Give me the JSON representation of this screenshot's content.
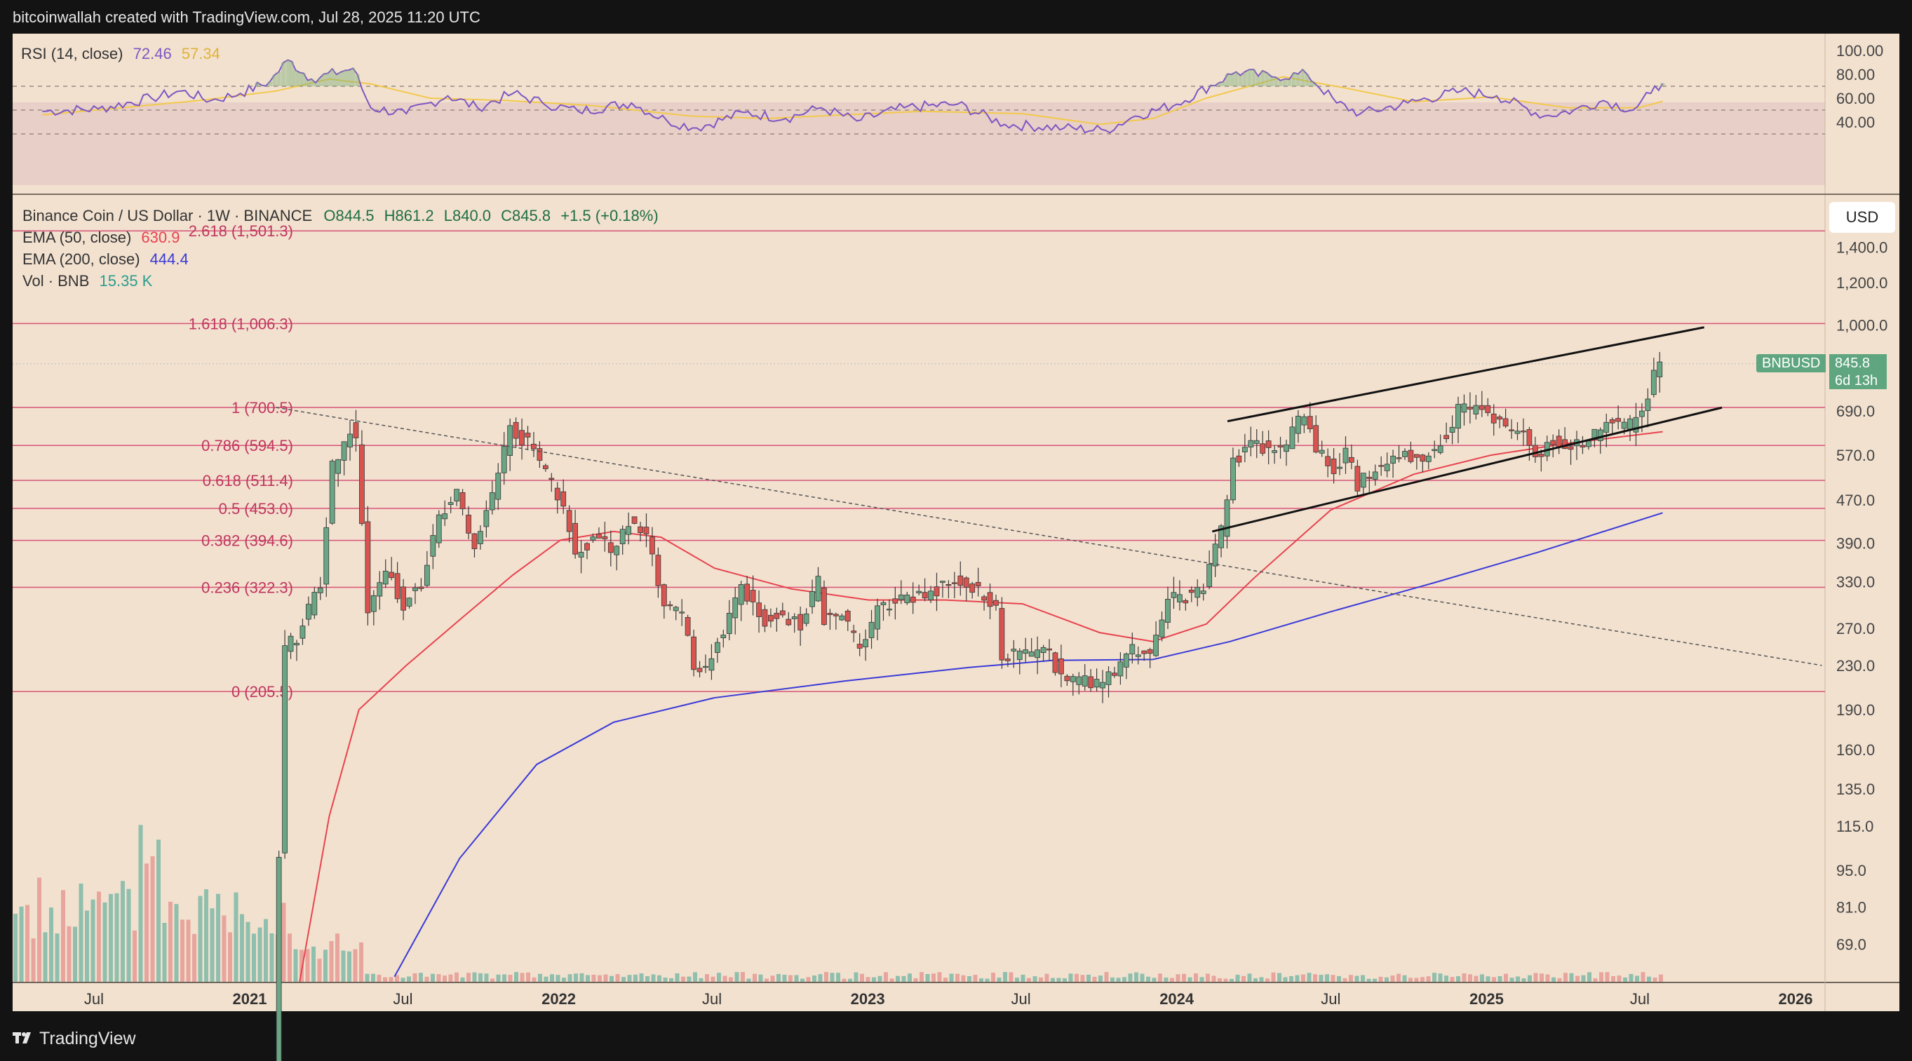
{
  "header": {
    "attribution": "bitcoinwallah created with TradingView.com, Jul 28, 2025 11:20 UTC"
  },
  "footer": {
    "logo_icon": "tradingview-logo-icon",
    "brand": "TradingView"
  },
  "colors": {
    "background": "#f2e1cf",
    "frame": "#131313",
    "up_candle": "#6aa584",
    "down_candle": "#d9534f",
    "ema50": "#e8434f",
    "ema200": "#3a3ad8",
    "rsi_line": "#7e57c2",
    "rsi_ma": "#f2c94c",
    "fib_line": "#d33c6a",
    "channel": "#111111"
  },
  "rsi_panel": {
    "label": "RSI (14, close)",
    "value": "72.46",
    "ma_value": "57.34",
    "axis_ticks": [
      "100.00",
      "80.00",
      "60.00",
      "40.00"
    ],
    "levels": [
      70,
      50,
      30
    ]
  },
  "main_legend": {
    "symbol": "Binance Coin / US Dollar · 1W · BINANCE",
    "open": "O844.5",
    "high": "H861.2",
    "low": "L840.0",
    "close": "C845.8",
    "change": "+1.5 (+0.18%)",
    "ema50_label": "EMA (50, close)",
    "ema50_value": "630.9",
    "ema200_label": "EMA (200, close)",
    "ema200_value": "444.4",
    "vol_label": "Vol · BNB",
    "vol_value": "15.35 K"
  },
  "currency": "USD",
  "price_tag": {
    "symbol": "BNBUSD",
    "price": "845.8",
    "countdown": "6d 13h"
  },
  "price_axis_ticks": [
    "1,400.0",
    "1,200.0",
    "1,000.0",
    "690.0",
    "570.0",
    "470.0",
    "390.0",
    "330.0",
    "270.0",
    "230.0",
    "190.0",
    "160.0",
    "135.0",
    "115.0",
    "95.0",
    "81.0",
    "69.0"
  ],
  "time_axis_ticks": [
    "Jul",
    "2021",
    "Jul",
    "2022",
    "Jul",
    "2023",
    "Jul",
    "2024",
    "Jul",
    "2025",
    "Jul",
    "2026"
  ],
  "chart_data": {
    "type": "candlestick",
    "title": "Binance Coin / US Dollar · 1W · BINANCE",
    "y_scale": "log",
    "ylim": [
      60,
      1550
    ],
    "xlim": [
      "2020-04",
      "2026-02"
    ],
    "fibonacci_levels": [
      {
        "label": "2.618 (1,501.3)",
        "value": 1501.3
      },
      {
        "label": "1.618 (1,006.3)",
        "value": 1006.3
      },
      {
        "label": "1 (700.5)",
        "value": 700.5
      },
      {
        "label": "0.786 (594.5)",
        "value": 594.5
      },
      {
        "label": "0.618 (511.4)",
        "value": 511.4
      },
      {
        "label": "0.5 (453.0)",
        "value": 453.0
      },
      {
        "label": "0.382 (394.6)",
        "value": 394.6
      },
      {
        "label": "0.236 (322.3)",
        "value": 322.3
      },
      {
        "label": "0 (205.5)",
        "value": 205.5
      }
    ],
    "price_path": [
      [
        "2021-02-01",
        40
      ],
      [
        "2021-02-15",
        250
      ],
      [
        "2021-03-01",
        260
      ],
      [
        "2021-03-29",
        330
      ],
      [
        "2021-04-12",
        540
      ],
      [
        "2021-05-03",
        640
      ],
      [
        "2021-05-10",
        600
      ],
      [
        "2021-05-24",
        290
      ],
      [
        "2021-06-14",
        350
      ],
      [
        "2021-07-05",
        300
      ],
      [
        "2021-07-26",
        330
      ],
      [
        "2021-08-16",
        440
      ],
      [
        "2021-09-06",
        480
      ],
      [
        "2021-09-27",
        380
      ],
      [
        "2021-10-18",
        480
      ],
      [
        "2021-11-08",
        640
      ],
      [
        "2021-11-29",
        600
      ],
      [
        "2021-12-20",
        530
      ],
      [
        "2022-01-10",
        460
      ],
      [
        "2022-01-24",
        370
      ],
      [
        "2022-02-14",
        400
      ],
      [
        "2022-03-07",
        380
      ],
      [
        "2022-03-28",
        430
      ],
      [
        "2022-04-18",
        410
      ],
      [
        "2022-05-09",
        300
      ],
      [
        "2022-05-30",
        290
      ],
      [
        "2022-06-13",
        230
      ],
      [
        "2022-06-27",
        230
      ],
      [
        "2022-07-18",
        270
      ],
      [
        "2022-08-08",
        320
      ],
      [
        "2022-09-05",
        280
      ],
      [
        "2022-09-26",
        285
      ],
      [
        "2022-10-17",
        275
      ],
      [
        "2022-11-07",
        330
      ],
      [
        "2022-11-14",
        280
      ],
      [
        "2022-12-05",
        290
      ],
      [
        "2022-12-26",
        245
      ],
      [
        "2023-01-16",
        290
      ],
      [
        "2023-02-13",
        310
      ],
      [
        "2023-03-13",
        310
      ],
      [
        "2023-04-10",
        330
      ],
      [
        "2023-04-24",
        330
      ],
      [
        "2023-05-22",
        310
      ],
      [
        "2023-06-05",
        300
      ],
      [
        "2023-06-12",
        240
      ],
      [
        "2023-07-10",
        245
      ],
      [
        "2023-08-07",
        240
      ],
      [
        "2023-08-21",
        220
      ],
      [
        "2023-09-11",
        215
      ],
      [
        "2023-10-02",
        212
      ],
      [
        "2023-10-23",
        225
      ],
      [
        "2023-11-13",
        245
      ],
      [
        "2023-12-04",
        240
      ],
      [
        "2023-12-25",
        305
      ],
      [
        "2024-01-15",
        310
      ],
      [
        "2024-02-05",
        320
      ],
      [
        "2024-02-26",
        410
      ],
      [
        "2024-03-11",
        560
      ],
      [
        "2024-04-01",
        590
      ],
      [
        "2024-04-22",
        590
      ],
      [
        "2024-05-13",
        600
      ],
      [
        "2024-06-03",
        690
      ],
      [
        "2024-06-17",
        590
      ],
      [
        "2024-07-08",
        530
      ],
      [
        "2024-07-22",
        580
      ],
      [
        "2024-08-05",
        500
      ],
      [
        "2024-08-26",
        540
      ],
      [
        "2024-09-16",
        560
      ],
      [
        "2024-10-07",
        570
      ],
      [
        "2024-10-28",
        570
      ],
      [
        "2024-11-18",
        620
      ],
      [
        "2024-12-02",
        700
      ],
      [
        "2024-12-16",
        690
      ],
      [
        "2025-01-06",
        690
      ],
      [
        "2025-01-27",
        640
      ],
      [
        "2025-02-17",
        620
      ],
      [
        "2025-03-03",
        560
      ],
      [
        "2025-03-24",
        610
      ],
      [
        "2025-04-14",
        590
      ],
      [
        "2025-05-05",
        600
      ],
      [
        "2025-05-26",
        660
      ],
      [
        "2025-06-16",
        640
      ],
      [
        "2025-06-30",
        655
      ],
      [
        "2025-07-14",
        720
      ],
      [
        "2025-07-21",
        800
      ],
      [
        "2025-07-28",
        845.8
      ]
    ],
    "ema50_path": [
      [
        "2021-03-01",
        40
      ],
      [
        "2021-04-05",
        120
      ],
      [
        "2021-05-10",
        190
      ],
      [
        "2021-07-05",
        230
      ],
      [
        "2021-09-06",
        280
      ],
      [
        "2021-11-08",
        340
      ],
      [
        "2022-01-03",
        395
      ],
      [
        "2022-03-07",
        410
      ],
      [
        "2022-05-02",
        400
      ],
      [
        "2022-07-04",
        350
      ],
      [
        "2022-10-03",
        320
      ],
      [
        "2023-01-02",
        305
      ],
      [
        "2023-04-03",
        305
      ],
      [
        "2023-07-03",
        300
      ],
      [
        "2023-10-02",
        265
      ],
      [
        "2023-12-04",
        255
      ],
      [
        "2024-02-05",
        275
      ],
      [
        "2024-04-01",
        335
      ],
      [
        "2024-07-01",
        450
      ],
      [
        "2024-10-07",
        525
      ],
      [
        "2025-01-06",
        570
      ],
      [
        "2025-04-07",
        600
      ],
      [
        "2025-07-28",
        630.9
      ]
    ],
    "ema200_path": [
      [
        "2021-06-21",
        60
      ],
      [
        "2021-09-06",
        100
      ],
      [
        "2021-12-06",
        150
      ],
      [
        "2022-03-07",
        180
      ],
      [
        "2022-07-04",
        200
      ],
      [
        "2022-12-05",
        215
      ],
      [
        "2023-05-01",
        228
      ],
      [
        "2023-08-07",
        235
      ],
      [
        "2023-12-04",
        236
      ],
      [
        "2024-03-04",
        255
      ],
      [
        "2024-07-01",
        290
      ],
      [
        "2024-11-04",
        330
      ],
      [
        "2025-03-03",
        375
      ],
      [
        "2025-07-28",
        444.4
      ]
    ],
    "channel_upper": [
      [
        "2024-03-01",
        660
      ],
      [
        "2025-09-15",
        990
      ]
    ],
    "channel_lower": [
      [
        "2024-02-12",
        410
      ],
      [
        "2025-10-06",
        700
      ]
    ],
    "downtrend_line": [
      [
        "2021-02-01",
        700.5
      ],
      [
        "2026-02-01",
        230
      ]
    ],
    "rsi_path": [
      [
        "2020-05-01",
        49
      ],
      [
        "2020-07-06",
        51
      ],
      [
        "2020-09-07",
        60
      ],
      [
        "2020-10-12",
        66
      ],
      [
        "2020-11-16",
        58
      ],
      [
        "2020-12-21",
        64
      ],
      [
        "2021-01-25",
        74
      ],
      [
        "2021-02-15",
        92
      ],
      [
        "2021-03-15",
        76
      ],
      [
        "2021-05-03",
        85
      ],
      [
        "2021-05-24",
        52
      ],
      [
        "2021-07-05",
        47
      ],
      [
        "2021-08-23",
        62
      ],
      [
        "2021-09-27",
        52
      ],
      [
        "2021-11-08",
        64
      ],
      [
        "2021-12-13",
        56
      ],
      [
        "2022-01-24",
        49
      ],
      [
        "2022-03-28",
        56
      ],
      [
        "2022-05-09",
        41
      ],
      [
        "2022-06-13",
        35
      ],
      [
        "2022-08-08",
        48
      ],
      [
        "2022-09-26",
        43
      ],
      [
        "2022-11-07",
        52
      ],
      [
        "2022-12-19",
        41
      ],
      [
        "2023-02-13",
        52
      ],
      [
        "2023-04-17",
        55
      ],
      [
        "2023-06-12",
        38
      ],
      [
        "2023-08-21",
        35
      ],
      [
        "2023-10-09",
        33
      ],
      [
        "2023-11-13",
        45
      ],
      [
        "2024-01-01",
        55
      ],
      [
        "2024-03-11",
        82
      ],
      [
        "2024-04-22",
        78
      ],
      [
        "2024-06-03",
        80
      ],
      [
        "2024-07-08",
        56
      ],
      [
        "2024-08-05",
        47
      ],
      [
        "2024-09-30",
        56
      ],
      [
        "2024-12-02",
        66
      ],
      [
        "2025-01-13",
        62
      ],
      [
        "2025-03-10",
        45
      ],
      [
        "2025-04-14",
        50
      ],
      [
        "2025-05-19",
        58
      ],
      [
        "2025-06-23",
        50
      ],
      [
        "2025-07-14",
        64
      ],
      [
        "2025-07-28",
        72.46
      ]
    ],
    "rsi_ma_path": [
      [
        "2020-05-01",
        46
      ],
      [
        "2020-08-03",
        52
      ],
      [
        "2020-11-02",
        58
      ],
      [
        "2021-02-01",
        66
      ],
      [
        "2021-04-05",
        76
      ],
      [
        "2021-05-24",
        72
      ],
      [
        "2021-08-02",
        60
      ],
      [
        "2021-11-01",
        58
      ],
      [
        "2022-02-07",
        54
      ],
      [
        "2022-06-06",
        45
      ],
      [
        "2022-09-05",
        43
      ],
      [
        "2022-12-05",
        46
      ],
      [
        "2023-03-06",
        49
      ],
      [
        "2023-07-03",
        47
      ],
      [
        "2023-10-02",
        38
      ],
      [
        "2023-12-04",
        43
      ],
      [
        "2024-02-05",
        60
      ],
      [
        "2024-05-06",
        78
      ],
      [
        "2024-07-22",
        68
      ],
      [
        "2024-10-07",
        57
      ],
      [
        "2025-01-06",
        61
      ],
      [
        "2025-04-07",
        52
      ],
      [
        "2025-06-30",
        52
      ],
      [
        "2025-07-28",
        57.34
      ]
    ]
  }
}
